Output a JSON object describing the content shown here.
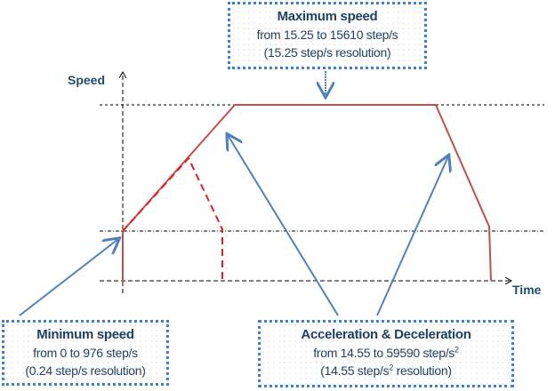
{
  "axes": {
    "y_label": "Speed",
    "x_label": "Time"
  },
  "max_box": {
    "title": "Maximum speed",
    "line1": "from 15.25 to 15610 step/s",
    "line2": "(15.25 step/s resolution)"
  },
  "min_box": {
    "title": "Minimum speed",
    "line1": "from 0 to 976 step/s",
    "line2": "(0.24 step/s resolution)"
  },
  "acc_box": {
    "title": "Acceleration & Deceleration",
    "line1": "from 14.55 to 59590 step/s",
    "line1_sup": "2",
    "line2_pre": "(14.55 step/s",
    "line2_sup": "2",
    "line2_post": " resolution)"
  },
  "colors": {
    "profile": "#c0504d",
    "dashed_profile": "#e02020",
    "arrows": "#4f81bd",
    "box_border": "#3f7fd0",
    "text": "#1f3f5f"
  }
}
